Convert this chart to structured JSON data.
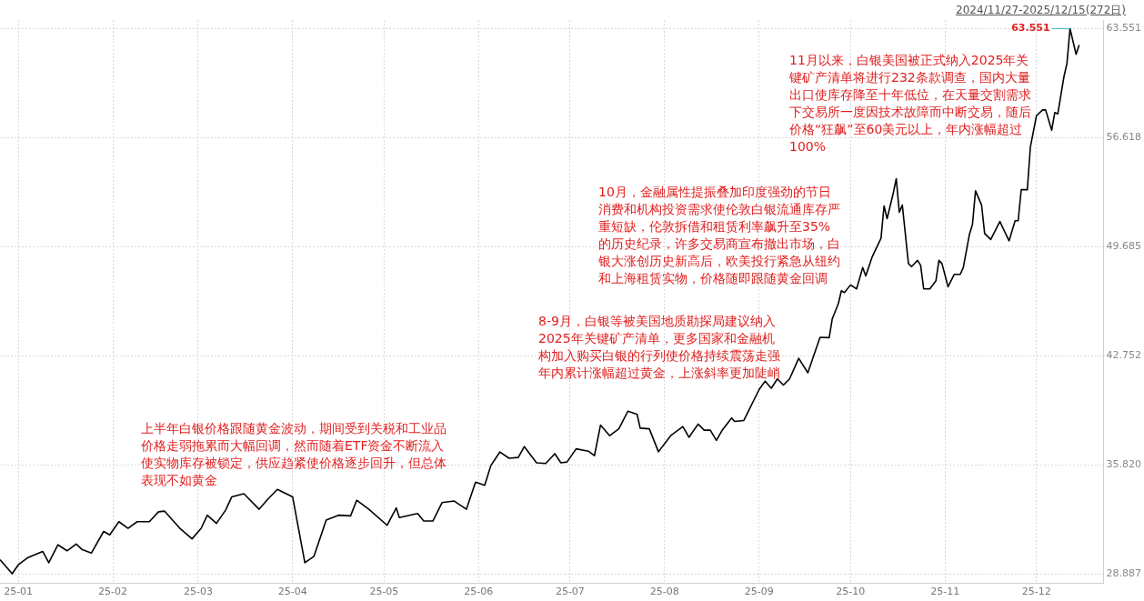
{
  "chart_data": {
    "type": "line",
    "x": [
      "2024-12-26",
      "2024-12-30",
      "2025-01-01",
      "2025-01-04",
      "2025-01-09",
      "2025-01-11",
      "2025-01-14",
      "2025-01-17",
      "2025-01-20",
      "2025-01-22",
      "2025-01-25",
      "2025-01-29",
      "2025-01-31",
      "2025-02-03",
      "2025-02-06",
      "2025-02-09",
      "2025-02-13",
      "2025-02-16",
      "2025-02-18",
      "2025-02-23",
      "2025-02-27",
      "2025-03-02",
      "2025-03-04",
      "2025-03-07",
      "2025-03-10",
      "2025-03-12",
      "2025-03-16",
      "2025-03-21",
      "2025-03-24",
      "2025-03-27",
      "2025-04-01",
      "2025-04-05",
      "2025-04-08",
      "2025-04-12",
      "2025-04-16",
      "2025-04-20",
      "2025-04-22",
      "2025-04-26",
      "2025-05-02",
      "2025-05-05",
      "2025-05-06",
      "2025-05-12",
      "2025-05-14",
      "2025-05-17",
      "2025-05-20",
      "2025-05-24",
      "2025-05-28",
      "2025-05-31",
      "2025-06-03",
      "2025-06-05",
      "2025-06-08",
      "2025-06-11",
      "2025-06-14",
      "2025-06-16",
      "2025-06-20",
      "2025-06-23",
      "2025-06-26",
      "2025-06-28",
      "2025-06-30",
      "2025-07-03",
      "2025-07-07",
      "2025-07-09",
      "2025-07-11",
      "2025-07-14",
      "2025-07-17",
      "2025-07-20",
      "2025-07-23",
      "2025-07-24",
      "2025-07-27",
      "2025-07-30",
      "2025-08-03",
      "2025-08-07",
      "2025-08-09",
      "2025-08-12",
      "2025-08-14",
      "2025-08-16",
      "2025-08-18",
      "2025-08-20",
      "2025-08-23",
      "2025-08-24",
      "2025-08-27",
      "2025-08-29",
      "2025-09-01",
      "2025-09-03",
      "2025-09-05",
      "2025-09-07",
      "2025-09-09",
      "2025-09-11",
      "2025-09-14",
      "2025-09-17",
      "2025-09-21",
      "2025-09-24",
      "2025-09-25",
      "2025-09-27",
      "2025-09-28",
      "2025-09-29",
      "2025-10-01",
      "2025-10-03",
      "2025-10-05",
      "2025-10-06",
      "2025-10-08",
      "2025-10-09",
      "2025-10-11",
      "2025-10-12",
      "2025-10-13",
      "2025-10-15",
      "2025-10-16",
      "2025-10-17",
      "2025-10-18",
      "2025-10-20",
      "2025-10-21",
      "2025-10-23",
      "2025-10-24",
      "2025-10-25",
      "2025-10-27",
      "2025-10-29",
      "2025-10-30",
      "2025-10-31",
      "2025-11-02",
      "2025-11-04",
      "2025-11-06",
      "2025-11-07",
      "2025-11-09",
      "2025-11-10",
      "2025-11-11",
      "2025-11-13",
      "2025-11-14",
      "2025-11-16",
      "2025-11-19",
      "2025-11-22",
      "2025-11-24",
      "2025-11-25",
      "2025-11-26",
      "2025-11-28",
      "2025-11-29",
      "2025-12-01",
      "2025-12-03",
      "2025-12-04",
      "2025-12-06",
      "2025-12-07",
      "2025-12-08",
      "2025-12-10",
      "2025-12-11",
      "2025-12-12",
      "2025-12-14",
      "2025-12-15"
    ],
    "series": [
      {
        "color": "#000000",
        "values": [
          29.82,
          28.92,
          29.49,
          29.93,
          30.34,
          29.62,
          30.76,
          30.38,
          30.81,
          30.45,
          30.24,
          31.61,
          31.39,
          32.23,
          31.81,
          32.23,
          32.23,
          32.86,
          32.9,
          31.81,
          31.14,
          31.81,
          32.64,
          32.12,
          32.96,
          33.8,
          34.01,
          33.02,
          33.69,
          34.28,
          33.8,
          29.62,
          30.03,
          32.33,
          32.64,
          32.6,
          33.59,
          33.02,
          32.0,
          33.1,
          32.49,
          32.75,
          32.27,
          32.27,
          33.44,
          33.54,
          33.02,
          34.74,
          34.54,
          35.79,
          36.66,
          36.26,
          36.31,
          37.0,
          35.97,
          35.93,
          36.55,
          35.97,
          36.02,
          36.86,
          36.71,
          36.42,
          38.37,
          37.69,
          38.13,
          39.25,
          39.05,
          38.17,
          38.13,
          36.67,
          37.69,
          38.27,
          37.59,
          38.43,
          38.04,
          38.04,
          37.39,
          38.07,
          38.82,
          38.6,
          38.66,
          39.44,
          40.62,
          41.16,
          40.71,
          41.3,
          40.91,
          41.3,
          42.61,
          41.69,
          43.94,
          43.92,
          45.11,
          46.08,
          46.9,
          46.78,
          47.27,
          47.02,
          48.38,
          47.84,
          49.0,
          49.42,
          50.23,
          52.29,
          51.48,
          53.08,
          54.02,
          51.89,
          52.34,
          48.63,
          48.43,
          48.83,
          48.51,
          47.02,
          47.02,
          47.52,
          48.83,
          48.63,
          47.15,
          47.94,
          47.94,
          48.38,
          50.48,
          51.1,
          53.25,
          52.34,
          50.53,
          50.16,
          51.3,
          50.07,
          51.35,
          51.35,
          53.32,
          53.32,
          56.04,
          58.02,
          58.39,
          58.39,
          57.1,
          58.22,
          58.14,
          60.49,
          61.35,
          63.551,
          61.92,
          62.51
        ]
      }
    ],
    "xlim": [
      "2024-12-26",
      "2025-12-23"
    ],
    "xticks": [
      {
        "value": "2025-01-01",
        "label": "25-01"
      },
      {
        "value": "2025-02-01",
        "label": "25-02"
      },
      {
        "value": "2025-03-01",
        "label": "25-03"
      },
      {
        "value": "2025-04-01",
        "label": "25-04"
      },
      {
        "value": "2025-05-01",
        "label": "25-05"
      },
      {
        "value": "2025-06-01",
        "label": "25-06"
      },
      {
        "value": "2025-07-01",
        "label": "25-07"
      },
      {
        "value": "2025-08-01",
        "label": "25-08"
      },
      {
        "value": "2025-09-01",
        "label": "25-09"
      },
      {
        "value": "2025-10-01",
        "label": "25-10"
      },
      {
        "value": "2025-11-01",
        "label": "25-11"
      },
      {
        "value": "2025-12-01",
        "label": "25-12"
      }
    ],
    "ylim": [
      28.3,
      64.1
    ],
    "yticks": [
      28.887,
      {
        "value": 35.82,
        "label": "35.820"
      },
      42.752,
      49.685,
      56.618,
      63.551
    ],
    "grid": true,
    "legend": false,
    "marker": "none",
    "line_style": "solid",
    "annotations": [
      "2024/11/27-2025/12/15(272日)",
      {
        "text": "63.551",
        "x": "2025-12-12",
        "y": 63.551
      },
      "上半年白银价格跟随黄金波动，期间受到关税和工业品价格走弱拖累而大幅回调，然而随着ETF资金不断流入使实物库存被锁定，供应趋紧使价格逐步回升，但总体表现不如黄金",
      "8-9月，白银等被美国地质勘探局建议纳入2025年关键矿产清单，更多国家和金融机构加入购买白银的行列使价格持续震荡走强年内累计涨幅超过黄金，上涨斜率更加陡峭",
      "10月，金融属性提振叠加印度强劲的节日消费和机构投资需求使伦敦白银流通库存严重短缺，伦敦拆借和租赁利率飙升至35%的历史纪录，许多交易商宣布撤出市场，白银大涨创历史新高后，欧美投行紧急从纽约和上海租赁实物，价格随即跟随黄金回调",
      "11月以来，白银美国被正式纳入2025年关键矿产清单将进行232条款调查，国内大量出口使库存降至十年低位，在天量交割需求下交易所一度因技术故障而中断交易，随后价格“狂飙”至60美元以上，年内涨幅超过100%"
    ]
  }
}
